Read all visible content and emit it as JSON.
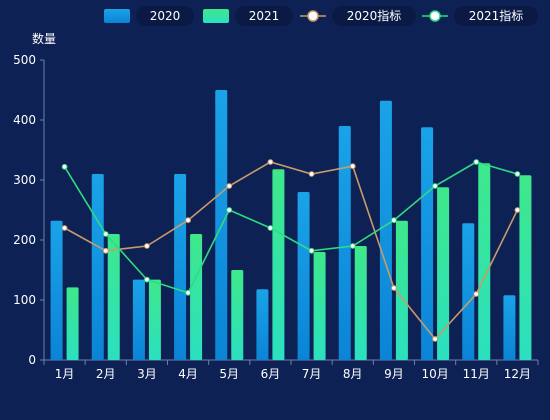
{
  "chart_data": {
    "type": "bar",
    "ylabel": "数量",
    "ylim": [
      0,
      500
    ],
    "yticks": [
      0,
      100,
      200,
      300,
      400,
      500
    ],
    "categories": [
      "1月",
      "2月",
      "3月",
      "4月",
      "5月",
      "6月",
      "7月",
      "8月",
      "9月",
      "10月",
      "11月",
      "12月"
    ],
    "legend_position": "top-right",
    "grid": false,
    "series": [
      {
        "name": "2020",
        "kind": "bar",
        "color": "#1aa3e8",
        "color2": "#0b84d6",
        "values": [
          232,
          310,
          134,
          310,
          450,
          118,
          280,
          390,
          432,
          388,
          228,
          108
        ]
      },
      {
        "name": "2021",
        "kind": "bar",
        "color": "#3ee88a",
        "color2": "#2be0c0",
        "values": [
          121,
          210,
          134,
          210,
          150,
          318,
          180,
          190,
          232,
          288,
          328,
          308
        ]
      },
      {
        "name": "2020指标",
        "kind": "line",
        "color": "#c99a6a",
        "values": [
          220,
          182,
          190,
          233,
          290,
          330,
          310,
          323,
          120,
          35,
          110,
          250
        ]
      },
      {
        "name": "2021指标",
        "kind": "line",
        "color": "#2ddc82",
        "values": [
          322,
          210,
          134,
          112,
          250,
          220,
          182,
          190,
          233,
          290,
          330,
          310
        ]
      }
    ]
  }
}
